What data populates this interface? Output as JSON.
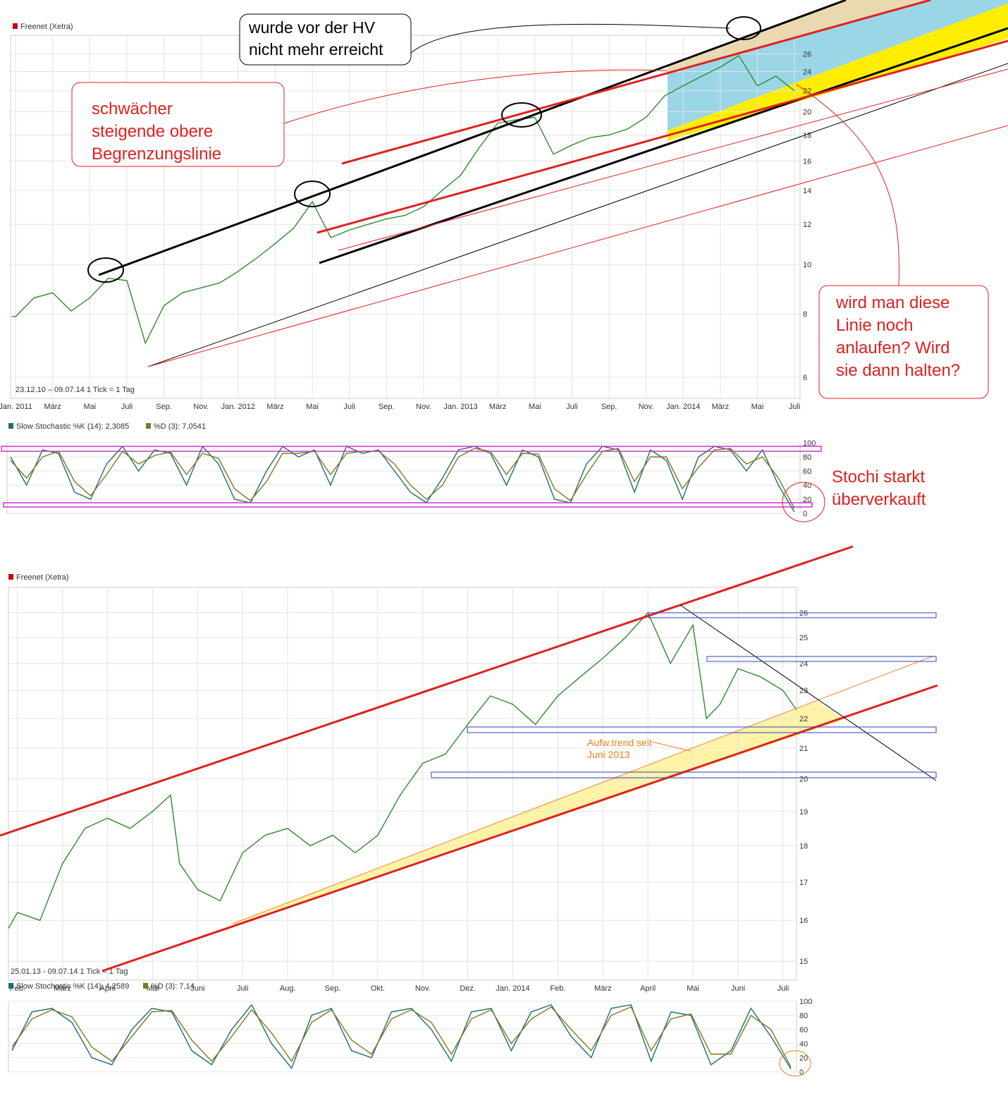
{
  "chart_data": [
    {
      "type": "line",
      "period": "23.12.10 – 09.07.14   1 Tick = 1 Tag",
      "log_scale": true,
      "grid": true,
      "xlim": [
        -0.27,
        42.3
      ],
      "xticks": [
        {
          "value": 0,
          "label": "Jan. 2011"
        },
        {
          "value": 2,
          "label": "März"
        },
        {
          "value": 4,
          "label": "Mai"
        },
        {
          "value": 6,
          "label": "Juli"
        },
        {
          "value": 8,
          "label": "Sep."
        },
        {
          "value": 10,
          "label": "Nov."
        },
        {
          "value": 12,
          "label": "Jan. 2012"
        },
        {
          "value": 14,
          "label": "März"
        },
        {
          "value": 16,
          "label": "Mai"
        },
        {
          "value": 18,
          "label": "Juli"
        },
        {
          "value": 20,
          "label": "Sep."
        },
        {
          "value": 22,
          "label": "Nov."
        },
        {
          "value": 24,
          "label": "Jan. 2013"
        },
        {
          "value": 26,
          "label": "März"
        },
        {
          "value": 28,
          "label": "Mai"
        },
        {
          "value": 30,
          "label": "Juli"
        },
        {
          "value": 32,
          "label": "Sep."
        },
        {
          "value": 34,
          "label": "Nov."
        },
        {
          "value": 36,
          "label": "Jan. 2014"
        },
        {
          "value": 38,
          "label": "März"
        },
        {
          "value": 40,
          "label": "Mai"
        },
        {
          "value": 42,
          "label": "Juli"
        }
      ],
      "ylim": [
        5.45,
        28.3
      ],
      "yticks": [
        6,
        8,
        10,
        12,
        14,
        16,
        18,
        20,
        22,
        24,
        26
      ],
      "series": [
        {
          "name": "Freenet (Xetra)",
          "color": "#2e8b2e",
          "x": [
            -0.2,
            0,
            1,
            2,
            3,
            4,
            5,
            6,
            7,
            8,
            9,
            10,
            11,
            12,
            13,
            14,
            15,
            16,
            17,
            18,
            19,
            20,
            21,
            22,
            23,
            24,
            25,
            26,
            27,
            28,
            29,
            30,
            31,
            32,
            33,
            34,
            35,
            36,
            37,
            38,
            39,
            40,
            41,
            42
          ],
          "values": [
            7.9,
            7.9,
            8.6,
            8.8,
            8.1,
            8.6,
            9.4,
            9.3,
            7.0,
            8.3,
            8.8,
            9.0,
            9.2,
            9.7,
            10.3,
            11.0,
            11.8,
            13.3,
            11.3,
            11.7,
            12.0,
            12.3,
            12.5,
            13.0,
            14.0,
            15.0,
            17.0,
            19.0,
            19.3,
            19.5,
            16.5,
            17.2,
            17.8,
            18.0,
            18.5,
            19.5,
            21.5,
            22.5,
            23.5,
            24.5,
            25.8,
            22.5,
            23.5,
            22.0
          ]
        }
      ]
    },
    {
      "type": "line",
      "grid": true,
      "ylim": [
        0,
        100
      ],
      "yticks": [
        0,
        20,
        40,
        60,
        80,
        100
      ],
      "series": [
        {
          "name": "Slow Stochastic %K (14): 2,3085",
          "color": "#1a6e6e",
          "values": [
            80,
            40,
            90,
            85,
            30,
            20,
            70,
            95,
            60,
            90,
            85,
            40,
            95,
            70,
            20,
            15,
            60,
            95,
            80,
            90,
            40,
            95,
            85,
            90,
            60,
            30,
            15,
            50,
            90,
            95,
            85,
            40,
            90,
            80,
            20,
            15,
            70,
            95,
            90,
            30,
            90,
            75,
            20,
            80,
            95,
            90,
            60,
            90,
            40,
            2
          ]
        },
        {
          "name": "%D (3): 7,0541",
          "color": "#7a7a20",
          "values": [
            75,
            50,
            80,
            88,
            45,
            25,
            55,
            88,
            70,
            82,
            87,
            55,
            85,
            78,
            35,
            18,
            45,
            85,
            85,
            88,
            55,
            85,
            88,
            88,
            70,
            40,
            20,
            40,
            80,
            92,
            88,
            55,
            85,
            84,
            35,
            18,
            55,
            88,
            92,
            45,
            80,
            80,
            35,
            65,
            90,
            92,
            70,
            80,
            50,
            7
          ]
        }
      ]
    },
    {
      "type": "line",
      "period": "25.01.13 - 09.07.14   1 Tick = 1 Tag",
      "log_scale": true,
      "grid": true,
      "xlim": [
        -0.2,
        17.3
      ],
      "xticks": [
        {
          "value": 0,
          "label": "Feb."
        },
        {
          "value": 1,
          "label": "März"
        },
        {
          "value": 2,
          "label": "April"
        },
        {
          "value": 3,
          "label": "Mai"
        },
        {
          "value": 4,
          "label": "Juni"
        },
        {
          "value": 5,
          "label": "Juli"
        },
        {
          "value": 6,
          "label": "Aug."
        },
        {
          "value": 7,
          "label": "Sep."
        },
        {
          "value": 8,
          "label": "Okt."
        },
        {
          "value": 9,
          "label": "Nov."
        },
        {
          "value": 10,
          "label": "Dez."
        },
        {
          "value": 11,
          "label": "Jan. 2014"
        },
        {
          "value": 12,
          "label": "Feb."
        },
        {
          "value": 13,
          "label": "März"
        },
        {
          "value": 14,
          "label": "April"
        },
        {
          "value": 15,
          "label": "Mai"
        },
        {
          "value": 16,
          "label": "Juni"
        },
        {
          "value": 17,
          "label": "Juli"
        }
      ],
      "ylim": [
        14.56,
        27.06
      ],
      "yticks": [
        15,
        16,
        17,
        18,
        19,
        20,
        21,
        22,
        23,
        24,
        25,
        26
      ],
      "series": [
        {
          "name": "Freenet (Xetra)",
          "color": "#2e8b2e",
          "x": [
            -0.2,
            0,
            0.5,
            1,
            1.5,
            2,
            2.5,
            3,
            3.4,
            3.6,
            4,
            4.5,
            5,
            5.5,
            6,
            6.5,
            7,
            7.5,
            8,
            8.5,
            9,
            9.5,
            10,
            10.5,
            11,
            11.5,
            12,
            12.5,
            13,
            13.5,
            14,
            14.5,
            15,
            15.3,
            15.6,
            16,
            16.5,
            17,
            17.3
          ],
          "values": [
            15.8,
            16.2,
            16.0,
            17.5,
            18.5,
            18.8,
            18.5,
            19.0,
            19.5,
            17.5,
            16.8,
            16.5,
            17.8,
            18.3,
            18.5,
            18.0,
            18.3,
            17.8,
            18.3,
            19.5,
            20.5,
            20.8,
            21.8,
            22.8,
            22.5,
            21.8,
            22.8,
            23.5,
            24.2,
            25.0,
            26.0,
            24.0,
            25.5,
            22.0,
            22.5,
            23.8,
            23.5,
            23.0,
            22.3
          ]
        }
      ]
    },
    {
      "type": "line",
      "grid": true,
      "ylim": [
        0,
        100
      ],
      "yticks": [
        0,
        20,
        40,
        60,
        80,
        100
      ],
      "series": [
        {
          "name": "Slow Stochastic %K (14): 4,2589",
          "color": "#1a6e6e",
          "values": [
            30,
            85,
            90,
            70,
            20,
            10,
            60,
            90,
            85,
            30,
            10,
            60,
            95,
            40,
            5,
            80,
            90,
            30,
            20,
            85,
            90,
            60,
            15,
            85,
            90,
            30,
            85,
            95,
            50,
            20,
            90,
            95,
            15,
            85,
            80,
            10,
            30,
            90,
            50,
            4
          ]
        },
        {
          "name": "%D (3): 7,14",
          "color": "#7a7a20",
          "values": [
            35,
            75,
            88,
            78,
            35,
            15,
            50,
            85,
            87,
            45,
            15,
            50,
            88,
            55,
            15,
            70,
            88,
            45,
            25,
            75,
            88,
            70,
            25,
            75,
            88,
            40,
            75,
            92,
            60,
            30,
            80,
            92,
            30,
            75,
            82,
            25,
            25,
            80,
            60,
            7
          ]
        }
      ]
    }
  ],
  "annotations": [
    {
      "lines": [
        "wurde vor der HV",
        "nicht mehr erreicht"
      ]
    },
    {
      "lines": [
        "schwächer",
        "steigende obere",
        "Begrenzungslinie"
      ]
    },
    {
      "lines": [
        "wird man diese",
        "Linie noch",
        "anlaufen? Wird",
        "sie dann halten?"
      ]
    },
    {
      "lines": [
        "Stochi starkt",
        "überverkauft"
      ]
    },
    {
      "lines": [
        "Aufw.trend seit",
        "Juni 2013"
      ]
    }
  ]
}
